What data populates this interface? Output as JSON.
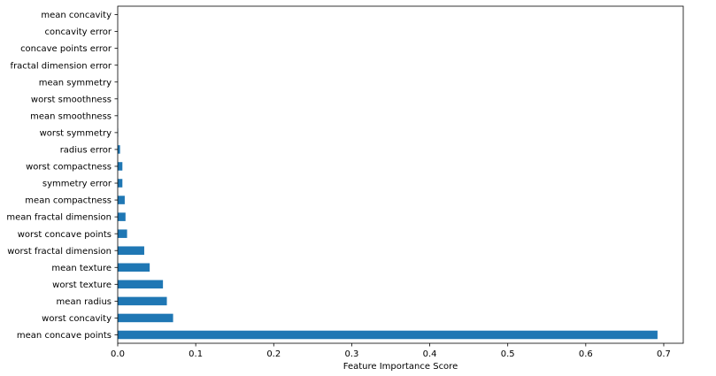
{
  "chart_data": {
    "type": "bar",
    "orientation": "horizontal",
    "xlabel": "Feature Importance Score",
    "ylabel": "",
    "xlim": [
      0,
      0.725
    ],
    "xticks": [
      0.0,
      0.1,
      0.2,
      0.3,
      0.4,
      0.5,
      0.6,
      0.7
    ],
    "xtick_labels": [
      "0.0",
      "0.1",
      "0.2",
      "0.3",
      "0.4",
      "0.5",
      "0.6",
      "0.7"
    ],
    "grid": false,
    "legend": false,
    "bar_color": "#1f77b4",
    "categories": [
      "mean concave points",
      "worst concavity",
      "mean radius",
      "worst texture",
      "mean texture",
      "worst fractal dimension",
      "worst concave points",
      "mean fractal dimension",
      "mean compactness",
      "symmetry error",
      "worst compactness",
      "radius error",
      "worst symmetry",
      "mean smoothness",
      "worst smoothness",
      "mean symmetry",
      "fractal dimension error",
      "concave points error",
      "concavity error",
      "mean concavity"
    ],
    "values": [
      0.692,
      0.071,
      0.063,
      0.058,
      0.041,
      0.034,
      0.012,
      0.01,
      0.009,
      0.006,
      0.006,
      0.003,
      0.0005,
      0.0003,
      0.0002,
      0.0001,
      0.0,
      0.0,
      0.0,
      0.0
    ]
  }
}
